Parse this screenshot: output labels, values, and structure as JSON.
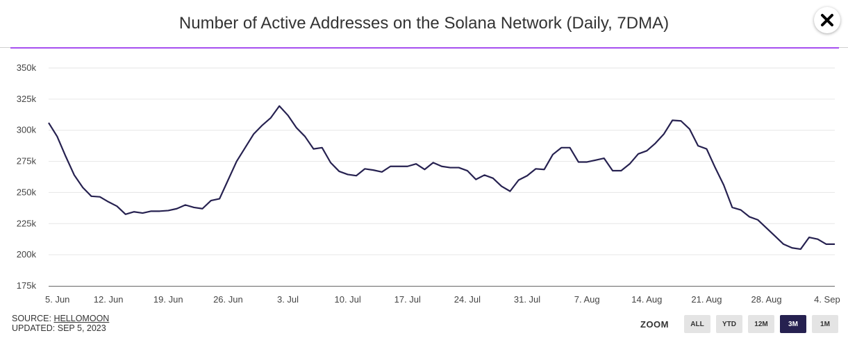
{
  "header": {
    "title": "Number of Active Addresses on the Solana Network (Daily, 7DMA)"
  },
  "footer": {
    "source_prefix": "SOURCE: ",
    "source_name": "HELLOMOON",
    "updated": "UPDATED: SEP 5, 2023"
  },
  "zoom": {
    "label": "ZOOM",
    "buttons": [
      "ALL",
      "YTD",
      "12M",
      "3M",
      "1M"
    ],
    "active": "3M"
  },
  "colors": {
    "line": "#262150",
    "accent_rule": "#a64ff0",
    "grid": "#e6e6e6",
    "active_zoom": "#262150"
  },
  "chart_data": {
    "type": "line",
    "title": "Number of Active Addresses on the Solana Network (Daily, 7DMA)",
    "xlabel": "",
    "ylabel": "",
    "ylim": [
      175000,
      350000
    ],
    "yticks": [
      175000,
      200000,
      225000,
      250000,
      275000,
      300000,
      325000,
      350000
    ],
    "ytick_labels": [
      "175k",
      "200k",
      "225k",
      "250k",
      "275k",
      "300k",
      "325k",
      "350k"
    ],
    "xtick_labels": [
      "5. Jun",
      "12. Jun",
      "19. Jun",
      "26. Jun",
      "3. Jul",
      "10. Jul",
      "17. Jul",
      "24. Jul",
      "31. Jul",
      "7. Aug",
      "14. Aug",
      "21. Aug",
      "28. Aug",
      "4. Sep"
    ],
    "x_start": "2023-06-05",
    "x_end": "2023-09-05",
    "grid": true,
    "series": [
      {
        "values": [
          306000,
          295000,
          279000,
          264000,
          254000,
          247000,
          246500,
          242500,
          239000,
          232500,
          234500,
          233500,
          235000,
          235000,
          235500,
          237000,
          240000,
          238000,
          237000,
          243500,
          245000,
          260000,
          275000,
          286000,
          297000,
          304000,
          310000,
          319500,
          312000,
          302000,
          295000,
          285000,
          286000,
          274000,
          267000,
          264500,
          263500,
          269000,
          268000,
          266500,
          271000,
          271000,
          271000,
          273000,
          268500,
          274000,
          271000,
          270000,
          270000,
          267500,
          260500,
          264000,
          261500,
          255000,
          251000,
          260000,
          263500,
          269000,
          268500,
          280500,
          286000,
          286000,
          274500,
          274500,
          276000,
          277500,
          267500,
          267500,
          273000,
          281000,
          283500,
          289500,
          297000,
          308000,
          307500,
          301000,
          287500,
          285000,
          270000,
          256000,
          238000,
          236000,
          230500,
          228000,
          221500,
          215000,
          208500,
          205500,
          204500,
          214000,
          212500,
          208500,
          208500
        ]
      }
    ]
  }
}
